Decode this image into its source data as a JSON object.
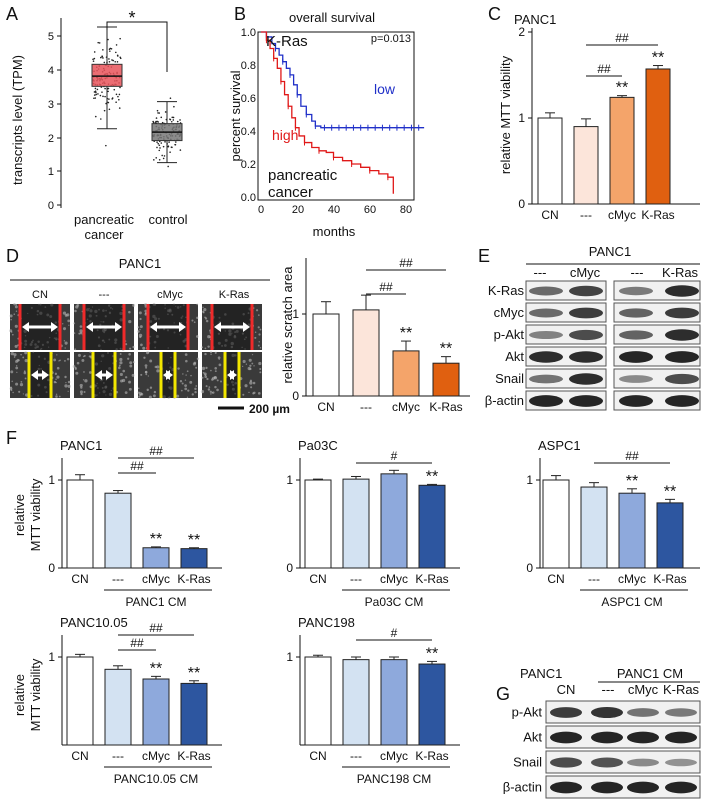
{
  "panels": {
    "A": {
      "label": "A",
      "ylabel": "transcripts level (TPM)",
      "yticks": [
        "0",
        "1",
        "2",
        "3",
        "4",
        "5"
      ],
      "xticks": [
        "pancreatic",
        "cancer",
        "control"
      ],
      "sig": "*",
      "chart_data": {
        "type": "box",
        "categories": [
          "pancreatic cancer",
          "control"
        ],
        "median": [
          3.8,
          2.15
        ],
        "q1": [
          3.5,
          1.9
        ],
        "q3": [
          4.15,
          2.4
        ],
        "whisker_low": [
          2.25,
          1.25
        ],
        "whisker_high": [
          5.25,
          3.05
        ],
        "ylim": [
          0,
          5.5
        ],
        "colors": [
          "#e8545a",
          "#777777"
        ]
      }
    },
    "B": {
      "label": "B",
      "title": "overall survival",
      "gene": "K-Ras",
      "pval": "p=0.013",
      "low": "low",
      "high": "high",
      "note1": "pancreatic",
      "note2": "cancer",
      "ylabel": "percent survival",
      "xlabel": "months",
      "yticks": [
        "0.0",
        "0.2",
        "0.4",
        "0.6",
        "0.8",
        "1.0"
      ],
      "xticks": [
        "0",
        "20",
        "40",
        "60",
        "80"
      ],
      "chart_data": {
        "type": "line",
        "xlim": [
          0,
          92
        ],
        "ylim": [
          0,
          1
        ],
        "series": [
          {
            "name": "low",
            "color": "#2030c8",
            "x": [
              0,
              3,
              6,
              8,
              10,
              12,
              14,
              16,
              18,
              20,
              22,
              25,
              28,
              30,
              33,
              90
            ],
            "y": [
              1.0,
              0.97,
              0.93,
              0.9,
              0.86,
              0.82,
              0.78,
              0.74,
              0.68,
              0.62,
              0.55,
              0.5,
              0.46,
              0.43,
              0.42,
              0.42
            ]
          },
          {
            "name": "high",
            "color": "#e01818",
            "x": [
              0,
              3,
              5,
              7,
              9,
              11,
              13,
              15,
              17,
              19,
              21,
              24,
              28,
              32,
              36,
              40,
              45,
              50,
              55,
              60,
              65,
              70,
              73,
              73
            ],
            "y": [
              1.0,
              0.95,
              0.9,
              0.84,
              0.78,
              0.7,
              0.62,
              0.55,
              0.48,
              0.42,
              0.37,
              0.33,
              0.3,
              0.28,
              0.27,
              0.24,
              0.22,
              0.2,
              0.18,
              0.16,
              0.14,
              0.12,
              0.1,
              0.02
            ]
          }
        ]
      }
    },
    "C": {
      "label": "C",
      "cell": "PANC1",
      "ylabel": "relative MTT viability",
      "yticks": [
        "0",
        "1",
        "2"
      ],
      "sig1": "##",
      "sig2": "##",
      "chart_data": {
        "type": "bar",
        "categories": [
          "CN",
          "---",
          "cMyc",
          "K-Ras"
        ],
        "values": [
          1.0,
          0.9,
          1.24,
          1.57
        ],
        "errors": [
          0.06,
          0.09,
          0.02,
          0.04
        ],
        "ylim": [
          0,
          2
        ],
        "colors": [
          "#ffffff",
          "#fce5da",
          "#f4a46a",
          "#e06010"
        ],
        "stars": [
          "",
          "",
          "**",
          "**"
        ]
      }
    },
    "D": {
      "label": "D",
      "cell": "PANC1",
      "cols": [
        "CN",
        "---",
        "cMyc",
        "K-Ras"
      ],
      "scale": "200 µm",
      "ylabel": "relative scratch area",
      "yticks": [
        "0",
        "1"
      ],
      "sig1": "##",
      "sig2": "##",
      "chart_data": {
        "type": "bar",
        "categories": [
          "CN",
          "---",
          "cMyc",
          "K-Ras"
        ],
        "values": [
          1.0,
          1.05,
          0.55,
          0.4
        ],
        "errors": [
          0.15,
          0.18,
          0.12,
          0.08
        ],
        "ylim": [
          0,
          1.5
        ],
        "colors": [
          "#ffffff",
          "#fce5da",
          "#f4a46a",
          "#e06010"
        ],
        "stars": [
          "",
          "",
          "**",
          "**"
        ]
      }
    },
    "E": {
      "label": "E",
      "cell": "PANC1",
      "lanes": [
        "---",
        "cMyc",
        "---",
        "K-Ras"
      ],
      "rows": [
        "K-Ras",
        "cMyc",
        "p-Akt",
        "Akt",
        "Snail",
        "β-actin"
      ]
    },
    "F": {
      "label": "F",
      "ylabel1": "relative",
      "ylabel2": "MTT viability",
      "charts": [
        {
          "cell": "PANC1",
          "cm": "PANC1 CM",
          "categories": [
            "CN",
            "---",
            "cMyc",
            "K-Ras"
          ],
          "values": [
            1.0,
            0.85,
            0.23,
            0.22
          ],
          "errors": [
            0.06,
            0.03,
            0.01,
            0.01
          ],
          "stars": [
            "",
            "",
            "**",
            "**"
          ],
          "sigs": [
            "##",
            "##"
          ],
          "yticks": [
            "0",
            "1"
          ]
        },
        {
          "cell": "Pa03C",
          "cm": "Pa03C CM",
          "categories": [
            "CN",
            "---",
            "cMyc",
            "K-Ras"
          ],
          "values": [
            1.0,
            1.01,
            1.07,
            0.94
          ],
          "errors": [
            0.01,
            0.03,
            0.04,
            0.01
          ],
          "stars": [
            "",
            "",
            "",
            "**"
          ],
          "sigs": [
            "#"
          ],
          "yticks": [
            "0",
            "1"
          ]
        },
        {
          "cell": "ASPC1",
          "cm": "ASPC1 CM",
          "categories": [
            "CN",
            "---",
            "cMyc",
            "K-Ras"
          ],
          "values": [
            1.0,
            0.92,
            0.85,
            0.74
          ],
          "errors": [
            0.05,
            0.05,
            0.05,
            0.04
          ],
          "stars": [
            "",
            "",
            "**",
            "**"
          ],
          "sigs": [
            "##"
          ],
          "yticks": [
            "0",
            "1"
          ]
        },
        {
          "cell": "PANC10.05",
          "cm": "PANC10.05 CM",
          "categories": [
            "CN",
            "---",
            "cMyc",
            "K-Ras"
          ],
          "values": [
            1.0,
            0.86,
            0.75,
            0.7
          ],
          "errors": [
            0.03,
            0.04,
            0.03,
            0.03
          ],
          "stars": [
            "",
            "",
            "**",
            "**"
          ],
          "sigs": [
            "##",
            "##"
          ],
          "yticks": [
            "1"
          ]
        },
        {
          "cell": "PANC198",
          "cm": "PANC198 CM",
          "categories": [
            "CN",
            "---",
            "cMyc",
            "K-Ras"
          ],
          "values": [
            1.0,
            0.97,
            0.97,
            0.92
          ],
          "errors": [
            0.02,
            0.03,
            0.03,
            0.03
          ],
          "stars": [
            "",
            "",
            "",
            "**"
          ],
          "sigs": [
            "#"
          ],
          "yticks": [
            "1"
          ]
        }
      ],
      "colors": [
        "#ffffff",
        "#d3e2f2",
        "#8ea9dc",
        "#2d56a0"
      ]
    },
    "G": {
      "label": "G",
      "cell": "PANC1",
      "cm": "PANC1 CM",
      "lanes": [
        "CN",
        "---",
        "cMyc",
        "K-Ras"
      ],
      "rows": [
        "p-Akt",
        "Akt",
        "Snail",
        "β-actin"
      ]
    }
  }
}
